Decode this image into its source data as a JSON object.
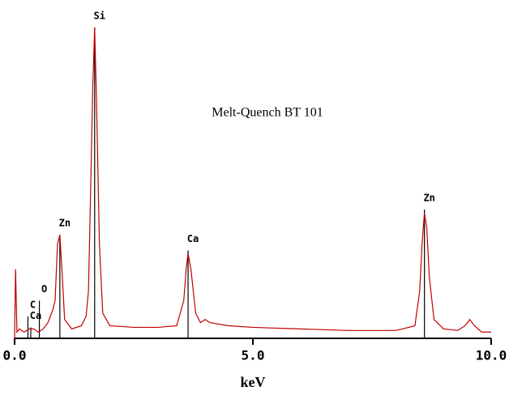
{
  "chart_data": {
    "type": "line",
    "title": "Melt-Quench BT 101",
    "x_label": "keV",
    "x": [
      0,
      0.02,
      0.05,
      0.1,
      0.2,
      0.3,
      0.4,
      0.5,
      0.6,
      0.7,
      0.8,
      0.85,
      0.9,
      0.95,
      1.0,
      1.05,
      1.2,
      1.4,
      1.5,
      1.55,
      1.6,
      1.64,
      1.68,
      1.72,
      1.78,
      1.85,
      2.0,
      2.5,
      3.0,
      3.4,
      3.55,
      3.6,
      3.64,
      3.7,
      3.8,
      3.9,
      4.0,
      4.1,
      4.5,
      5.0,
      6.0,
      7.0,
      8.0,
      8.4,
      8.5,
      8.55,
      8.6,
      8.65,
      8.7,
      8.8,
      9.0,
      9.3,
      9.45,
      9.55,
      9.65,
      9.8,
      10.0
    ],
    "series": [
      {
        "color": "#c00000",
        "values": [
          0,
          22,
          2,
          3,
          2,
          3,
          3,
          2,
          3,
          5,
          9,
          12,
          30,
          33,
          20,
          6,
          3,
          4,
          7,
          15,
          50,
          80,
          99,
          75,
          30,
          8,
          4,
          3.5,
          3.5,
          4,
          12,
          22,
          27,
          22,
          8,
          5,
          6,
          5,
          4,
          3.5,
          3,
          2.5,
          2.5,
          4,
          15,
          30,
          40,
          35,
          20,
          6,
          3,
          2.5,
          4,
          6,
          4,
          2,
          2
        ]
      }
    ],
    "markers": [
      {
        "label": "C",
        "x": 0.28,
        "height": 7
      },
      {
        "label": "Ca",
        "x": 0.34,
        "height": 3.5
      },
      {
        "label": "O",
        "x": 0.52,
        "height": 12
      },
      {
        "label": "Zn",
        "x": 0.95,
        "height": 33
      },
      {
        "label": "Si",
        "x": 1.68,
        "height": 99
      },
      {
        "label": "Ca",
        "x": 3.64,
        "height": 28
      },
      {
        "label": "Zn",
        "x": 8.6,
        "height": 41
      }
    ],
    "marker_color": "#000000",
    "xlim": [
      0,
      10
    ],
    "xticks": [
      {
        "value": 0,
        "label": "0.0"
      },
      {
        "value": 5,
        "label": "5.0"
      },
      {
        "value": 10,
        "label": "10.0"
      }
    ],
    "ylim": [
      0,
      100
    ]
  }
}
